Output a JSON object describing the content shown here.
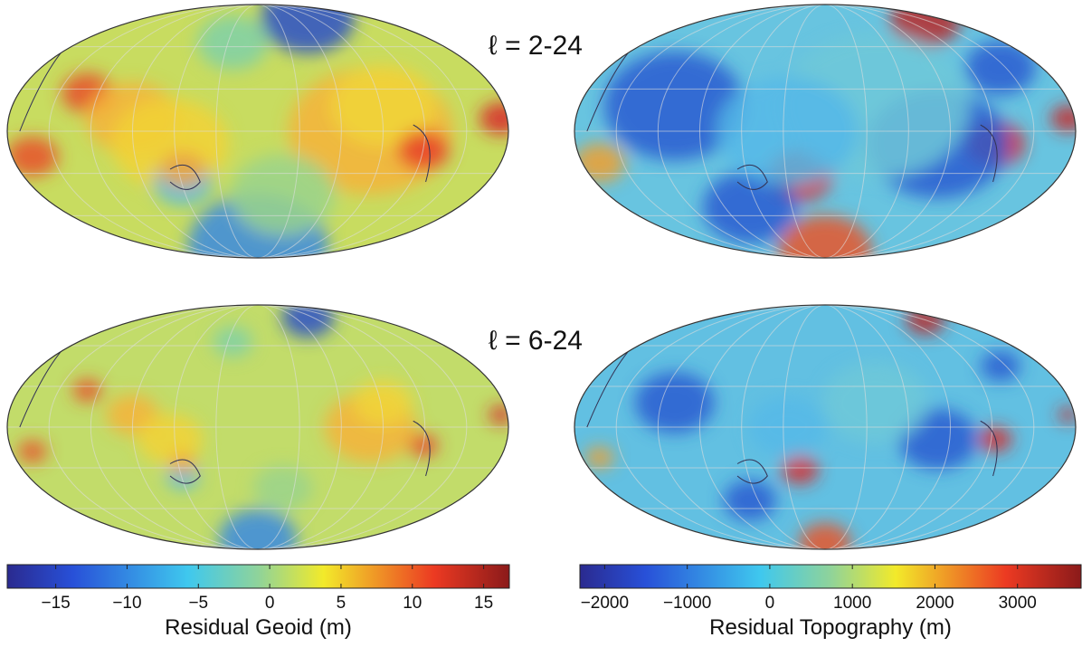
{
  "row_labels": [
    "ℓ = 2-24",
    "ℓ = 6-24"
  ],
  "colorbars": [
    {
      "label": "Residual Geoid (m)",
      "lim": [
        -18.4,
        16.8
      ],
      "ticks": [
        {
          "value": -15,
          "label": "−15"
        },
        {
          "value": -10,
          "label": "−10"
        },
        {
          "value": -5,
          "label": "−5"
        },
        0,
        5,
        10,
        15
      ]
    },
    {
      "label": "Residual Topography (m)",
      "lim": [
        -2300,
        3770
      ],
      "ticks": [
        {
          "value": -2000,
          "label": "−2000"
        },
        {
          "value": -1000,
          "label": "−1000"
        },
        0,
        1000,
        2000,
        3000
      ]
    }
  ]
}
